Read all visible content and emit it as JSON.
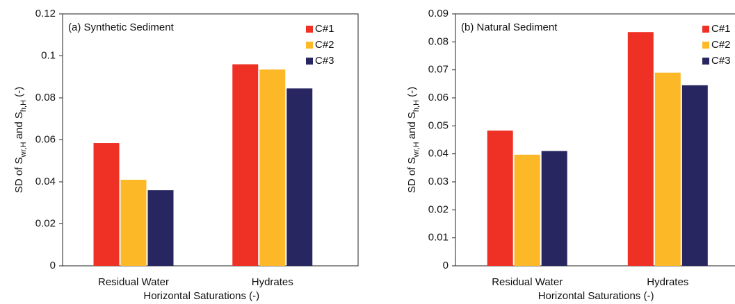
{
  "chart_data": [
    {
      "type": "bar",
      "annotation": "(a) Synthetic Sediment",
      "categories": [
        "Residual Water",
        "Hydrates"
      ],
      "series": [
        {
          "name": "C#1",
          "color": "#ee3124",
          "values": [
            0.0585,
            0.096
          ]
        },
        {
          "name": "C#2",
          "color": "#fdb827",
          "values": [
            0.041,
            0.0935
          ]
        },
        {
          "name": "C#3",
          "color": "#272660",
          "values": [
            0.036,
            0.0845
          ]
        }
      ],
      "ylim": [
        0,
        0.12
      ],
      "yticks": [
        0,
        0.02,
        0.04,
        0.06,
        0.08,
        0.1,
        0.12
      ],
      "xlabel": "Horizontal Saturations (-)",
      "ylabel": [
        "SD of S",
        "wr,H",
        " and S",
        "h,H",
        " (-)"
      ],
      "legend": "upper right"
    },
    {
      "type": "bar",
      "annotation": "(b) Natural Sediment",
      "categories": [
        "Residual Water",
        "Hydrates"
      ],
      "series": [
        {
          "name": "C#1",
          "color": "#ee3124",
          "values": [
            0.0483,
            0.0835
          ]
        },
        {
          "name": "C#2",
          "color": "#fdb827",
          "values": [
            0.0397,
            0.069
          ]
        },
        {
          "name": "C#3",
          "color": "#272660",
          "values": [
            0.041,
            0.0645
          ]
        }
      ],
      "ylim": [
        0,
        0.09
      ],
      "yticks": [
        0,
        0.01,
        0.02,
        0.03,
        0.04,
        0.05,
        0.06,
        0.07,
        0.08,
        0.09
      ],
      "xlabel": "Horizontal Saturations (-)",
      "ylabel": [
        "SD of S",
        "wr,H",
        " and S",
        "h,H",
        " (-)"
      ],
      "legend": "upper right"
    }
  ]
}
